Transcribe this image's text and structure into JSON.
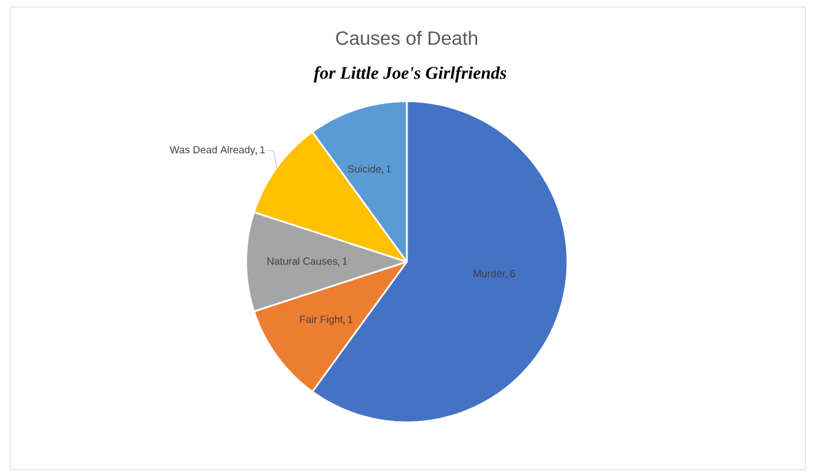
{
  "chart_data": {
    "type": "pie",
    "title": "Causes of Death",
    "subtitle": "for Little Joe's Girlfriends",
    "categories": [
      "Murder",
      "Fair Fight",
      "Natural Causes",
      "Was Dead Already",
      "Suicide"
    ],
    "values": [
      6,
      1,
      1,
      1,
      1
    ],
    "colors": [
      "#4472c4",
      "#ed7d31",
      "#a5a5a5",
      "#ffc000",
      "#5b9bd5"
    ],
    "data_labels": true
  }
}
